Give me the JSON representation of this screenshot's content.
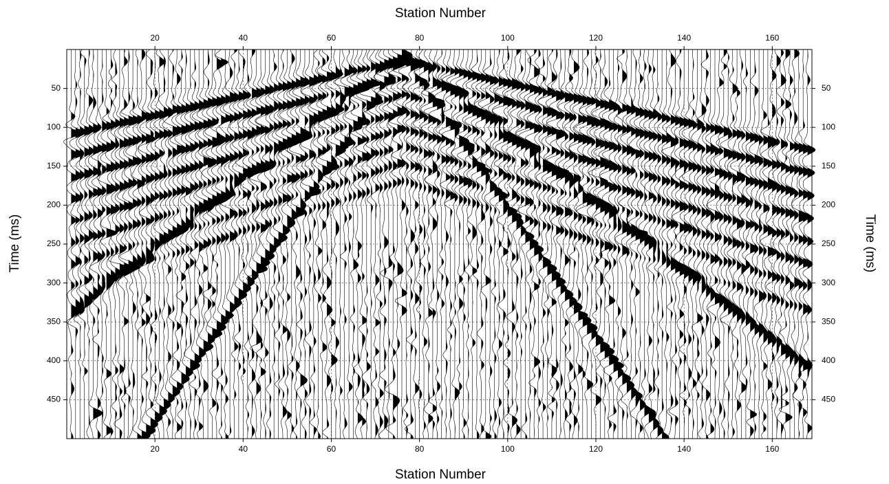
{
  "chart_data": {
    "type": "seismic",
    "xlabel": "Station Number",
    "ylabel": "Time (ms)",
    "xlim": [
      0,
      169
    ],
    "xticks": [
      20,
      40,
      60,
      80,
      100,
      120,
      140,
      160
    ],
    "ylim": [
      0,
      500
    ],
    "yticks": [
      50,
      100,
      150,
      200,
      250,
      300,
      350,
      400,
      450
    ],
    "grid": true,
    "color": "#000000"
  }
}
